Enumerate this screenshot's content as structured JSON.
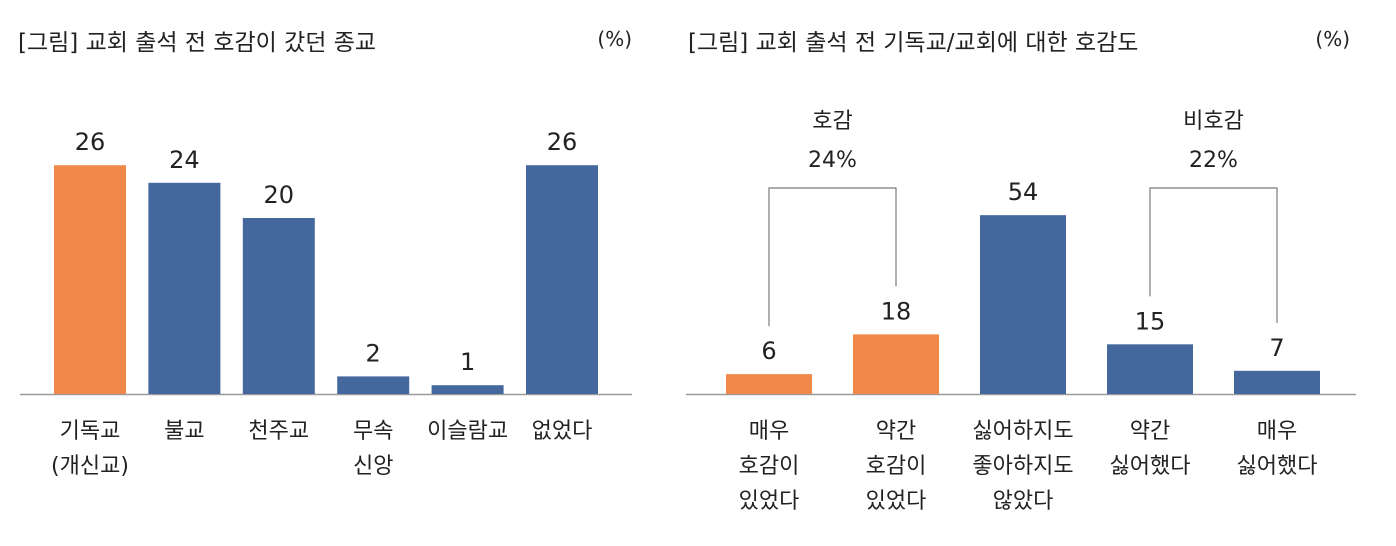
{
  "colors": {
    "orange": "#F0884A",
    "blue": "#44679E",
    "axis": "#9A9A9A",
    "bracket": "#7A7A7A"
  },
  "chart_data": [
    {
      "type": "bar",
      "title": "[그림] 교회 출석 전 호감이 갔던 종교",
      "unit": "(%)",
      "categories": [
        [
          "기독교",
          "(개신교)"
        ],
        [
          "불교"
        ],
        [
          "천주교"
        ],
        [
          "무속",
          "신앙"
        ],
        [
          "이슬람교"
        ],
        [
          "없었다"
        ]
      ],
      "values": [
        26,
        24,
        20,
        2,
        1,
        26
      ],
      "bar_colors": [
        "orange",
        "blue",
        "blue",
        "blue",
        "blue",
        "blue"
      ],
      "ylim": [
        0,
        30
      ]
    },
    {
      "type": "bar",
      "title": "[그림] 교회 출석 전 기독교/교회에 대한 호감도",
      "unit": "(%)",
      "categories": [
        [
          "매우",
          "호감이",
          "있었다"
        ],
        [
          "약간",
          "호감이",
          "있었다"
        ],
        [
          "싫어하지도",
          "좋아하지도",
          "않았다"
        ],
        [
          "약간",
          "싫어했다"
        ],
        [
          "매우",
          "싫어했다"
        ]
      ],
      "values": [
        6,
        18,
        54,
        15,
        7
      ],
      "bar_colors": [
        "orange",
        "orange",
        "blue",
        "blue",
        "blue"
      ],
      "ylim": [
        0,
        77
      ],
      "groups": [
        {
          "label": "호감",
          "value": "24%",
          "bars": [
            0,
            1
          ]
        },
        {
          "label": "비호감",
          "value": "22%",
          "bars": [
            3,
            4
          ]
        }
      ]
    }
  ]
}
